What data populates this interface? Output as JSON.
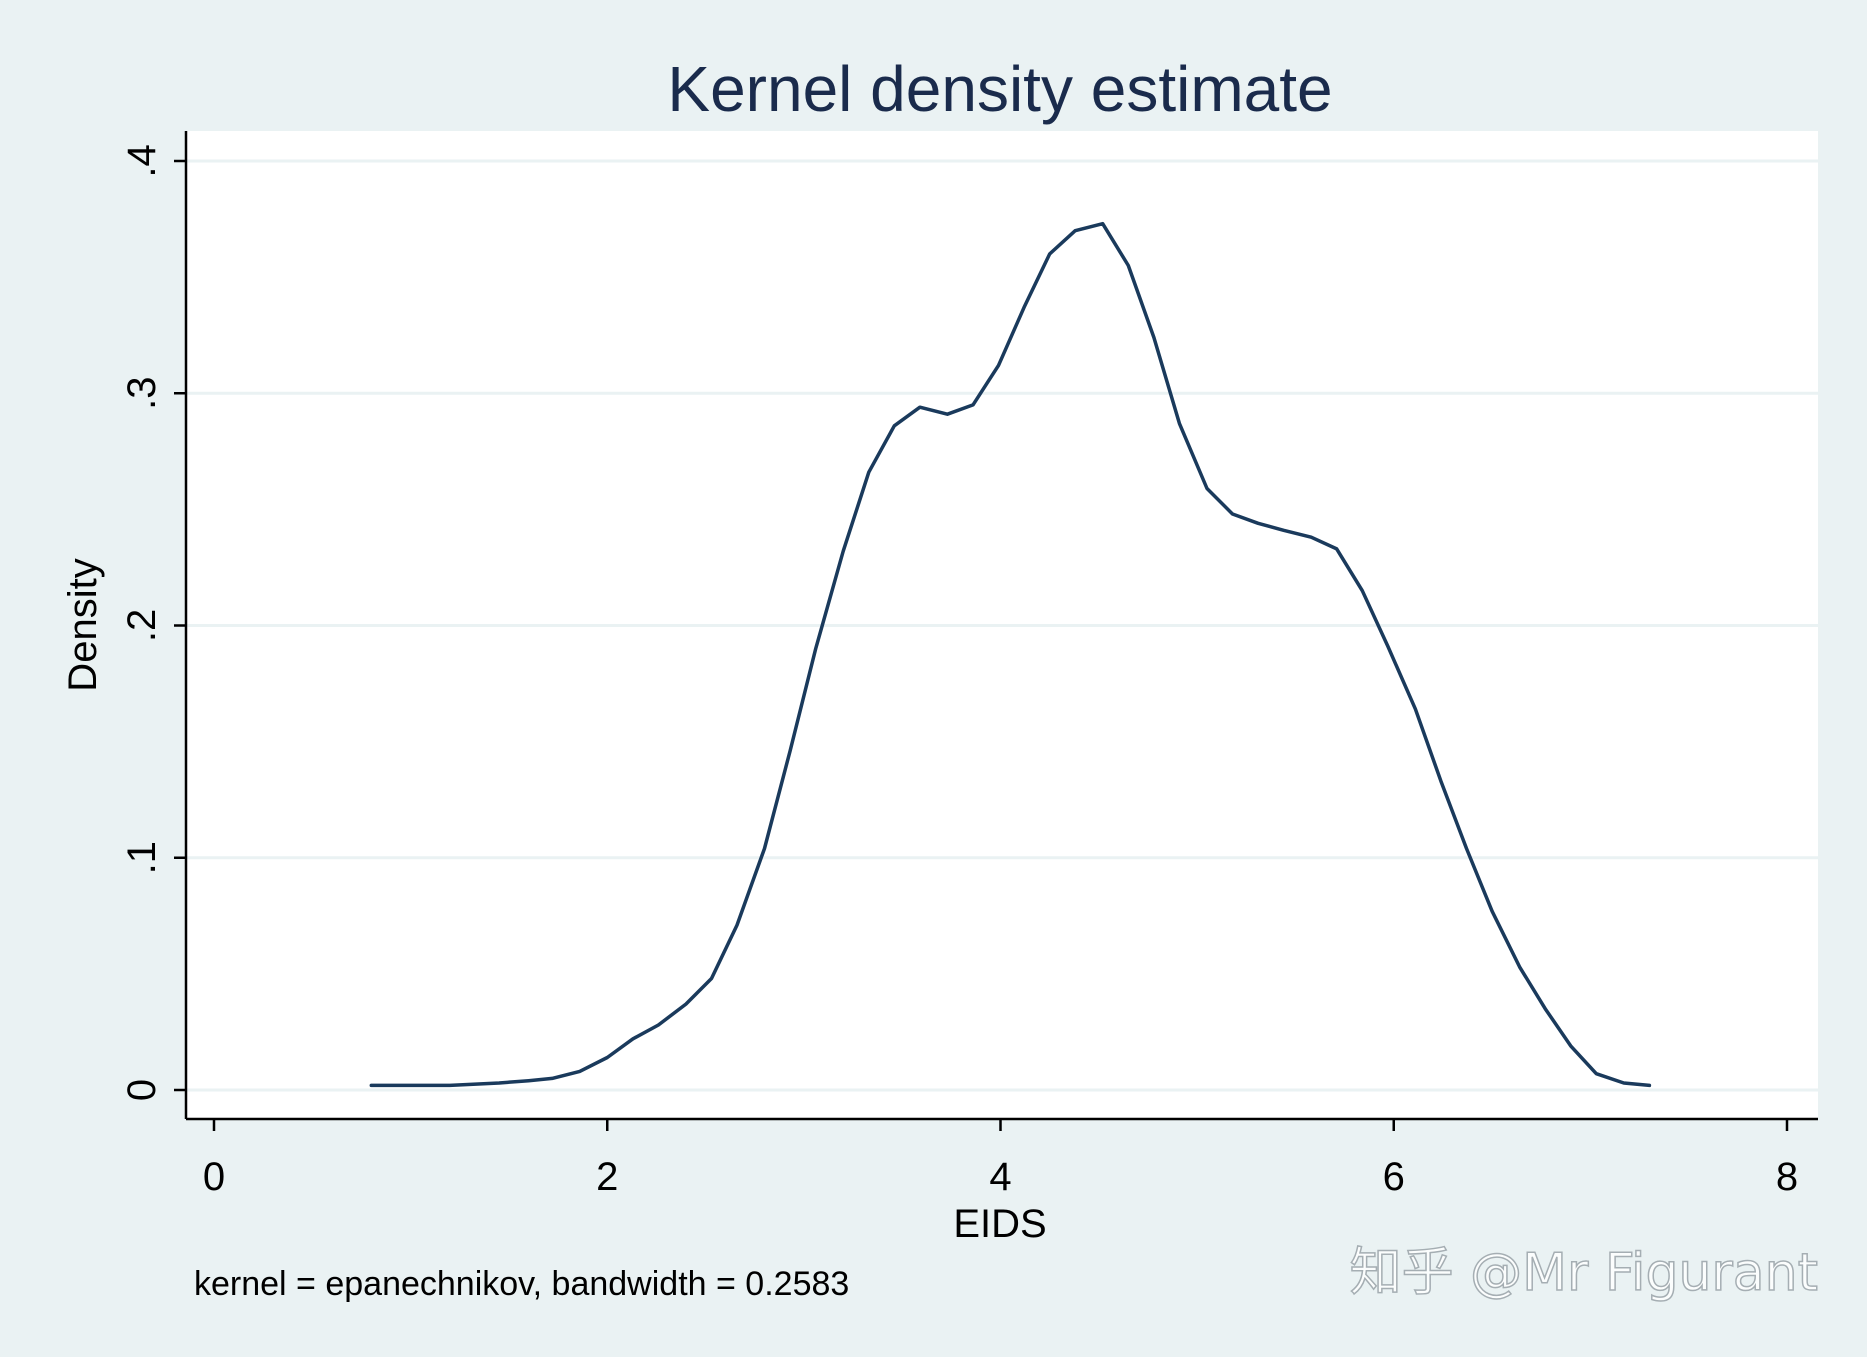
{
  "chart_data": {
    "type": "line",
    "title": "Kernel density estimate",
    "xlabel": "EIDS",
    "ylabel": "Density",
    "note": "kernel = epanechnikov, bandwidth = 0.2583",
    "xlim": [
      0,
      8
    ],
    "ylim": [
      0,
      0.4
    ],
    "x_ticks": [
      {
        "value": 0,
        "label": "0"
      },
      {
        "value": 2,
        "label": "2"
      },
      {
        "value": 4,
        "label": "4"
      },
      {
        "value": 6,
        "label": "6"
      },
      {
        "value": 8,
        "label": "8"
      }
    ],
    "y_ticks": [
      {
        "value": 0,
        "label": "0"
      },
      {
        "value": 0.1,
        "label": ".1"
      },
      {
        "value": 0.2,
        "label": ".2"
      },
      {
        "value": 0.3,
        "label": ".3"
      },
      {
        "value": 0.4,
        "label": ".4"
      }
    ],
    "grid": "horizontal",
    "series": [
      {
        "color": "#1a3a5c",
        "points": [
          [
            0.8,
            0.002
          ],
          [
            1.0,
            0.002
          ],
          [
            1.2,
            0.002
          ],
          [
            1.45,
            0.003
          ],
          [
            1.6,
            0.004
          ],
          [
            1.72,
            0.005
          ],
          [
            1.86,
            0.008
          ],
          [
            2.0,
            0.014
          ],
          [
            2.13,
            0.022
          ],
          [
            2.26,
            0.028
          ],
          [
            2.4,
            0.037
          ],
          [
            2.53,
            0.048
          ],
          [
            2.66,
            0.071
          ],
          [
            2.8,
            0.104
          ],
          [
            2.93,
            0.146
          ],
          [
            3.06,
            0.19
          ],
          [
            3.2,
            0.232
          ],
          [
            3.33,
            0.266
          ],
          [
            3.46,
            0.286
          ],
          [
            3.59,
            0.294
          ],
          [
            3.73,
            0.291
          ],
          [
            3.86,
            0.295
          ],
          [
            3.99,
            0.312
          ],
          [
            4.12,
            0.337
          ],
          [
            4.25,
            0.36
          ],
          [
            4.38,
            0.37
          ],
          [
            4.52,
            0.373
          ],
          [
            4.65,
            0.355
          ],
          [
            4.78,
            0.324
          ],
          [
            4.91,
            0.287
          ],
          [
            5.05,
            0.259
          ],
          [
            5.18,
            0.248
          ],
          [
            5.31,
            0.244
          ],
          [
            5.44,
            0.241
          ],
          [
            5.58,
            0.238
          ],
          [
            5.71,
            0.233
          ],
          [
            5.84,
            0.215
          ],
          [
            5.97,
            0.191
          ],
          [
            6.11,
            0.164
          ],
          [
            6.24,
            0.133
          ],
          [
            6.37,
            0.104
          ],
          [
            6.5,
            0.077
          ],
          [
            6.64,
            0.053
          ],
          [
            6.77,
            0.035
          ],
          [
            6.9,
            0.019
          ],
          [
            7.03,
            0.007
          ],
          [
            7.17,
            0.003
          ],
          [
            7.3,
            0.002
          ]
        ]
      }
    ]
  },
  "watermark": "知乎 @Mr Figurant",
  "colors": {
    "background": "#eaf2f3",
    "plot_background": "#ffffff",
    "gridline": "#eaf2f3",
    "axis": "#000000",
    "title": "#1a2b4c",
    "line": "#1a3a5c"
  }
}
